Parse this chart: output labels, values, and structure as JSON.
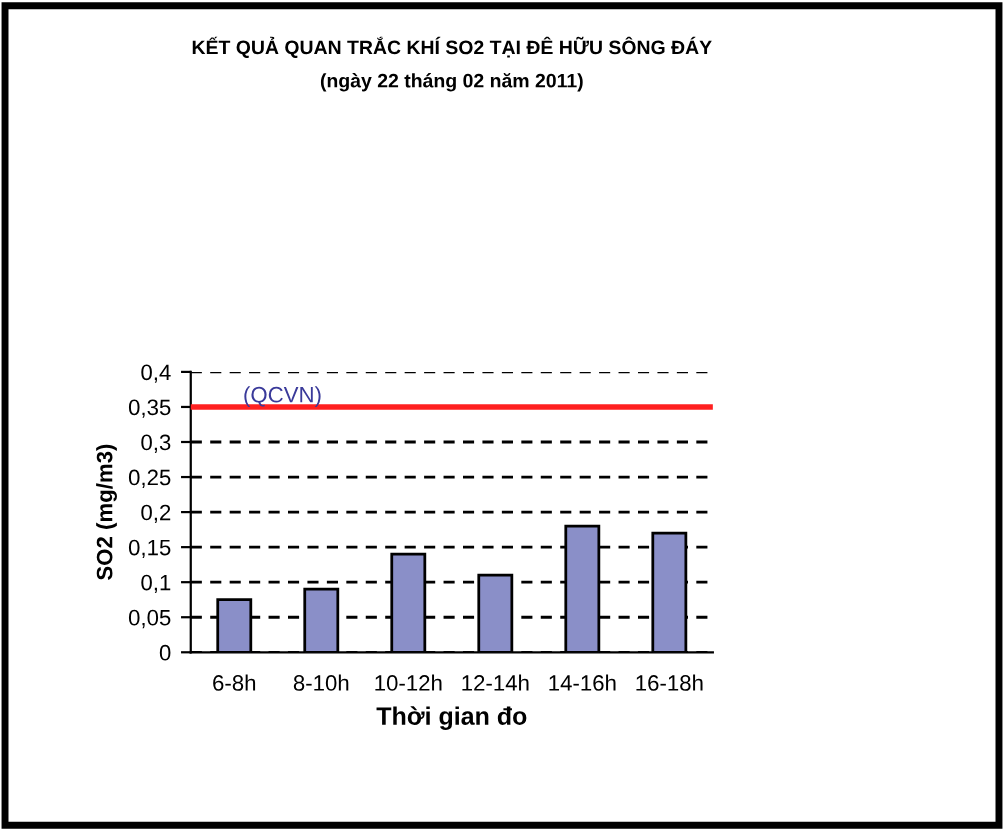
{
  "chart_data": {
    "type": "bar",
    "title": "KẾT QUẢ QUAN TRẮC KHÍ SO2 TẠI ĐÊ HỮU SÔNG ĐÁY",
    "subtitle": "(ngày 22 tháng 02 năm 2011)",
    "xlabel": "Thời gian đo",
    "ylabel": "SO2 (mg/m3)",
    "categories": [
      "6-8h",
      "8-10h",
      "10-12h",
      "12-14h",
      "14-16h",
      "16-18h"
    ],
    "values": [
      0.075,
      0.09,
      0.14,
      0.11,
      0.18,
      0.17
    ],
    "color": "#8a8fc8",
    "ylim": [
      0,
      0.4
    ],
    "yticks": [
      {
        "value": 0,
        "label": "0"
      },
      {
        "value": 0.05,
        "label": "0,05"
      },
      {
        "value": 0.1,
        "label": "0,1"
      },
      {
        "value": 0.15,
        "label": "0,15"
      },
      {
        "value": 0.2,
        "label": "0,2"
      },
      {
        "value": 0.25,
        "label": "0,25"
      },
      {
        "value": 0.3,
        "label": "0,3"
      },
      {
        "value": 0.35,
        "label": "0,35"
      },
      {
        "value": 0.4,
        "label": "0,4"
      }
    ],
    "grid": "y",
    "ref_lines": [
      {
        "axis": "y",
        "value": 0.35,
        "label": "(QCVN)",
        "color": "#ff2020"
      }
    ]
  }
}
